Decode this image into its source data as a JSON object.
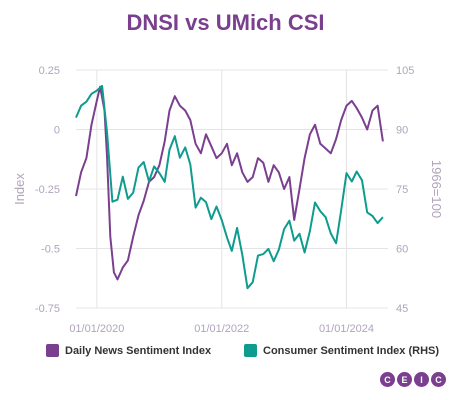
{
  "title": "DNSI vs UMich CSI",
  "colors": {
    "dnsi": "#7b3f8f",
    "csi": "#0e9c8e",
    "grid": "#e4e4e4",
    "axis_text": "#b0a4bd"
  },
  "legend": [
    {
      "label": "Daily News Sentiment Index",
      "color": "#7b3f8f"
    },
    {
      "label": "Consumer Sentiment Index (RHS)",
      "color": "#0e9c8e"
    }
  ],
  "brand": {
    "letters": [
      "C",
      "E",
      "I",
      "C"
    ]
  },
  "chart_data": {
    "type": "line",
    "title": "DNSI vs UMich CSI",
    "xlabel": "",
    "ylabel": "Index",
    "y2label": "1966=100",
    "x_tick_labels": [
      "01/01/2020",
      "01/01/2022",
      "01/01/2024"
    ],
    "x_range": [
      "2019-09-01",
      "2024-08-31"
    ],
    "ylim": [
      -0.75,
      0.25
    ],
    "y_ticks": [
      "0.25",
      "0",
      "-0.25",
      "-0.5",
      "-0.75"
    ],
    "y2lim": [
      45,
      105
    ],
    "y2_ticks": [
      "105",
      "90",
      "75",
      "60",
      "45"
    ],
    "grid": true,
    "legend_position": "bottom",
    "series": [
      {
        "name": "Daily News Sentiment Index",
        "axis": "left",
        "points": [
          [
            "2019-09-01",
            -0.28
          ],
          [
            "2019-10-01",
            -0.18
          ],
          [
            "2019-11-01",
            -0.12
          ],
          [
            "2019-12-01",
            0.02
          ],
          [
            "2020-01-01",
            0.12
          ],
          [
            "2020-01-20",
            0.18
          ],
          [
            "2020-02-15",
            0.08
          ],
          [
            "2020-03-01",
            -0.12
          ],
          [
            "2020-03-20",
            -0.45
          ],
          [
            "2020-04-10",
            -0.6
          ],
          [
            "2020-05-01",
            -0.63
          ],
          [
            "2020-06-01",
            -0.58
          ],
          [
            "2020-07-01",
            -0.55
          ],
          [
            "2020-08-01",
            -0.45
          ],
          [
            "2020-09-01",
            -0.36
          ],
          [
            "2020-10-01",
            -0.3
          ],
          [
            "2020-11-01",
            -0.22
          ],
          [
            "2020-12-01",
            -0.2
          ],
          [
            "2021-01-01",
            -0.15
          ],
          [
            "2021-02-01",
            -0.05
          ],
          [
            "2021-03-01",
            0.08
          ],
          [
            "2021-04-01",
            0.14
          ],
          [
            "2021-05-01",
            0.1
          ],
          [
            "2021-06-01",
            0.08
          ],
          [
            "2021-07-01",
            0.04
          ],
          [
            "2021-08-01",
            -0.06
          ],
          [
            "2021-09-01",
            -0.1
          ],
          [
            "2021-10-01",
            -0.02
          ],
          [
            "2021-11-01",
            -0.07
          ],
          [
            "2021-12-01",
            -0.12
          ],
          [
            "2022-01-01",
            -0.1
          ],
          [
            "2022-02-01",
            -0.06
          ],
          [
            "2022-03-01",
            -0.15
          ],
          [
            "2022-04-01",
            -0.1
          ],
          [
            "2022-05-01",
            -0.18
          ],
          [
            "2022-06-01",
            -0.22
          ],
          [
            "2022-07-01",
            -0.2
          ],
          [
            "2022-08-01",
            -0.12
          ],
          [
            "2022-09-01",
            -0.14
          ],
          [
            "2022-10-01",
            -0.22
          ],
          [
            "2022-11-01",
            -0.15
          ],
          [
            "2022-12-01",
            -0.18
          ],
          [
            "2023-01-01",
            -0.25
          ],
          [
            "2023-02-01",
            -0.2
          ],
          [
            "2023-03-01",
            -0.38
          ],
          [
            "2023-04-01",
            -0.25
          ],
          [
            "2023-05-01",
            -0.12
          ],
          [
            "2023-06-01",
            -0.02
          ],
          [
            "2023-07-01",
            0.02
          ],
          [
            "2023-08-01",
            -0.06
          ],
          [
            "2023-09-01",
            -0.08
          ],
          [
            "2023-10-01",
            -0.1
          ],
          [
            "2023-11-01",
            -0.04
          ],
          [
            "2023-12-01",
            0.04
          ],
          [
            "2024-01-01",
            0.1
          ],
          [
            "2024-02-01",
            0.12
          ],
          [
            "2024-03-01",
            0.09
          ],
          [
            "2024-04-01",
            0.05
          ],
          [
            "2024-05-01",
            0.0
          ],
          [
            "2024-06-01",
            0.08
          ],
          [
            "2024-07-01",
            0.1
          ],
          [
            "2024-08-01",
            -0.05
          ]
        ]
      },
      {
        "name": "Consumer Sentiment Index (RHS)",
        "axis": "right",
        "points": [
          [
            "2019-09-01",
            93
          ],
          [
            "2019-10-01",
            96
          ],
          [
            "2019-11-01",
            97
          ],
          [
            "2019-12-01",
            99
          ],
          [
            "2020-01-01",
            99.8
          ],
          [
            "2020-02-01",
            101
          ],
          [
            "2020-03-01",
            89.1
          ],
          [
            "2020-04-01",
            71.8
          ],
          [
            "2020-05-01",
            72.3
          ],
          [
            "2020-06-01",
            78.1
          ],
          [
            "2020-07-01",
            72.5
          ],
          [
            "2020-08-01",
            74.1
          ],
          [
            "2020-09-01",
            80.4
          ],
          [
            "2020-10-01",
            81.8
          ],
          [
            "2020-11-01",
            76.9
          ],
          [
            "2020-12-01",
            80.7
          ],
          [
            "2021-01-01",
            79.0
          ],
          [
            "2021-02-01",
            76.8
          ],
          [
            "2021-03-01",
            84.9
          ],
          [
            "2021-04-01",
            88.3
          ],
          [
            "2021-05-01",
            82.9
          ],
          [
            "2021-06-01",
            85.5
          ],
          [
            "2021-07-01",
            81.2
          ],
          [
            "2021-08-01",
            70.3
          ],
          [
            "2021-09-01",
            72.8
          ],
          [
            "2021-10-01",
            71.7
          ],
          [
            "2021-11-01",
            67.4
          ],
          [
            "2021-12-01",
            70.6
          ],
          [
            "2022-01-01",
            67.2
          ],
          [
            "2022-02-01",
            62.8
          ],
          [
            "2022-03-01",
            59.4
          ],
          [
            "2022-04-01",
            65.2
          ],
          [
            "2022-05-01",
            58.4
          ],
          [
            "2022-06-01",
            50.0
          ],
          [
            "2022-07-01",
            51.5
          ],
          [
            "2022-08-01",
            58.2
          ],
          [
            "2022-09-01",
            58.6
          ],
          [
            "2022-10-01",
            59.9
          ],
          [
            "2022-11-01",
            56.8
          ],
          [
            "2022-12-01",
            59.7
          ],
          [
            "2023-01-01",
            64.9
          ],
          [
            "2023-02-01",
            67.0
          ],
          [
            "2023-03-01",
            62.0
          ],
          [
            "2023-04-01",
            63.7
          ],
          [
            "2023-05-01",
            59.0
          ],
          [
            "2023-06-01",
            64.4
          ],
          [
            "2023-07-01",
            71.6
          ],
          [
            "2023-08-01",
            69.4
          ],
          [
            "2023-09-01",
            67.9
          ],
          [
            "2023-10-01",
            63.8
          ],
          [
            "2023-11-01",
            61.3
          ],
          [
            "2023-12-01",
            69.7
          ],
          [
            "2024-01-01",
            79.0
          ],
          [
            "2024-02-01",
            76.9
          ],
          [
            "2024-03-01",
            79.4
          ],
          [
            "2024-04-01",
            77.2
          ],
          [
            "2024-05-01",
            69.1
          ],
          [
            "2024-06-01",
            68.2
          ],
          [
            "2024-07-01",
            66.4
          ],
          [
            "2024-08-01",
            67.9
          ]
        ]
      }
    ]
  }
}
